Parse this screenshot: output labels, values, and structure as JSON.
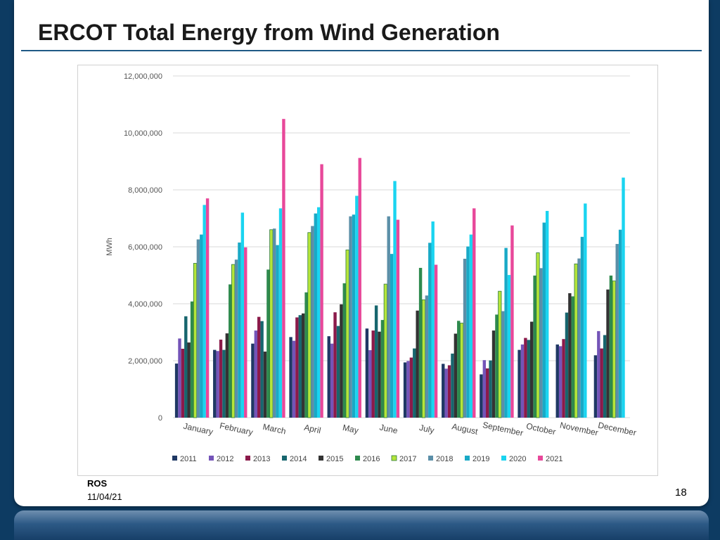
{
  "slide": {
    "title": "ERCOT Total Energy from Wind Generation",
    "footer_org": "ROS",
    "footer_date": "11/04/21",
    "page_number": "18"
  },
  "chart_data": {
    "type": "bar",
    "title": "",
    "xlabel": "",
    "ylabel": "MWh",
    "ylim": [
      0,
      12000000
    ],
    "yticks": [
      0,
      2000000,
      4000000,
      6000000,
      8000000,
      10000000,
      12000000
    ],
    "ytick_labels": [
      "0",
      "2,000,000",
      "4,000,000",
      "6,000,000",
      "8,000,000",
      "10,000,000",
      "12,000,000"
    ],
    "grid": true,
    "legend_position": "bottom",
    "categories": [
      "January",
      "February",
      "March",
      "April",
      "May",
      "June",
      "July",
      "August",
      "September",
      "October",
      "November",
      "December"
    ],
    "series": [
      {
        "name": "2011",
        "color": "#1f3864",
        "values": [
          1900000,
          2380000,
          2600000,
          2830000,
          2860000,
          3130000,
          1940000,
          1890000,
          1520000,
          2380000,
          2570000,
          2190000
        ]
      },
      {
        "name": "2012",
        "color": "#7454b8",
        "values": [
          2780000,
          2340000,
          3060000,
          2700000,
          2600000,
          2370000,
          1990000,
          1720000,
          2020000,
          2570000,
          2510000,
          3040000
        ]
      },
      {
        "name": "2013",
        "color": "#8b1a4a",
        "values": [
          2420000,
          2740000,
          3540000,
          3520000,
          3700000,
          3060000,
          2110000,
          1840000,
          1730000,
          2800000,
          2760000,
          2430000
        ]
      },
      {
        "name": "2014",
        "color": "#17666e",
        "values": [
          3560000,
          2380000,
          3390000,
          3600000,
          3220000,
          3940000,
          2430000,
          2250000,
          2010000,
          2730000,
          3690000,
          2900000
        ]
      },
      {
        "name": "2015",
        "color": "#333333",
        "values": [
          2640000,
          2960000,
          2320000,
          3660000,
          3980000,
          3020000,
          3760000,
          2950000,
          3060000,
          3370000,
          4370000,
          4500000
        ]
      },
      {
        "name": "2016",
        "color": "#2e8a4e",
        "values": [
          4080000,
          4680000,
          5200000,
          4400000,
          4720000,
          3430000,
          5260000,
          3400000,
          3620000,
          4990000,
          4260000,
          4990000
        ]
      },
      {
        "name": "2017",
        "color": "#b5e53a",
        "values": [
          5420000,
          5380000,
          6600000,
          6500000,
          5890000,
          4690000,
          4140000,
          3320000,
          4440000,
          5790000,
          5400000,
          4800000
        ]
      },
      {
        "name": "2018",
        "color": "#5b8fa8",
        "values": [
          6260000,
          5550000,
          6640000,
          6730000,
          7070000,
          7070000,
          4290000,
          5580000,
          3740000,
          5250000,
          5590000,
          6100000
        ]
      },
      {
        "name": "2019",
        "color": "#19a9c6",
        "values": [
          6430000,
          6150000,
          6060000,
          7170000,
          7130000,
          5750000,
          6140000,
          6010000,
          5960000,
          6850000,
          6350000,
          6600000
        ]
      },
      {
        "name": "2020",
        "color": "#1ad4f0",
        "values": [
          7470000,
          7200000,
          7350000,
          7390000,
          7790000,
          8310000,
          6890000,
          6430000,
          5010000,
          7260000,
          7520000,
          8430000
        ]
      },
      {
        "name": "2021",
        "color": "#e8489a",
        "values": [
          7700000,
          5980000,
          10490000,
          8900000,
          9120000,
          6950000,
          5370000,
          7350000,
          6750000,
          null,
          null,
          null
        ]
      }
    ]
  }
}
